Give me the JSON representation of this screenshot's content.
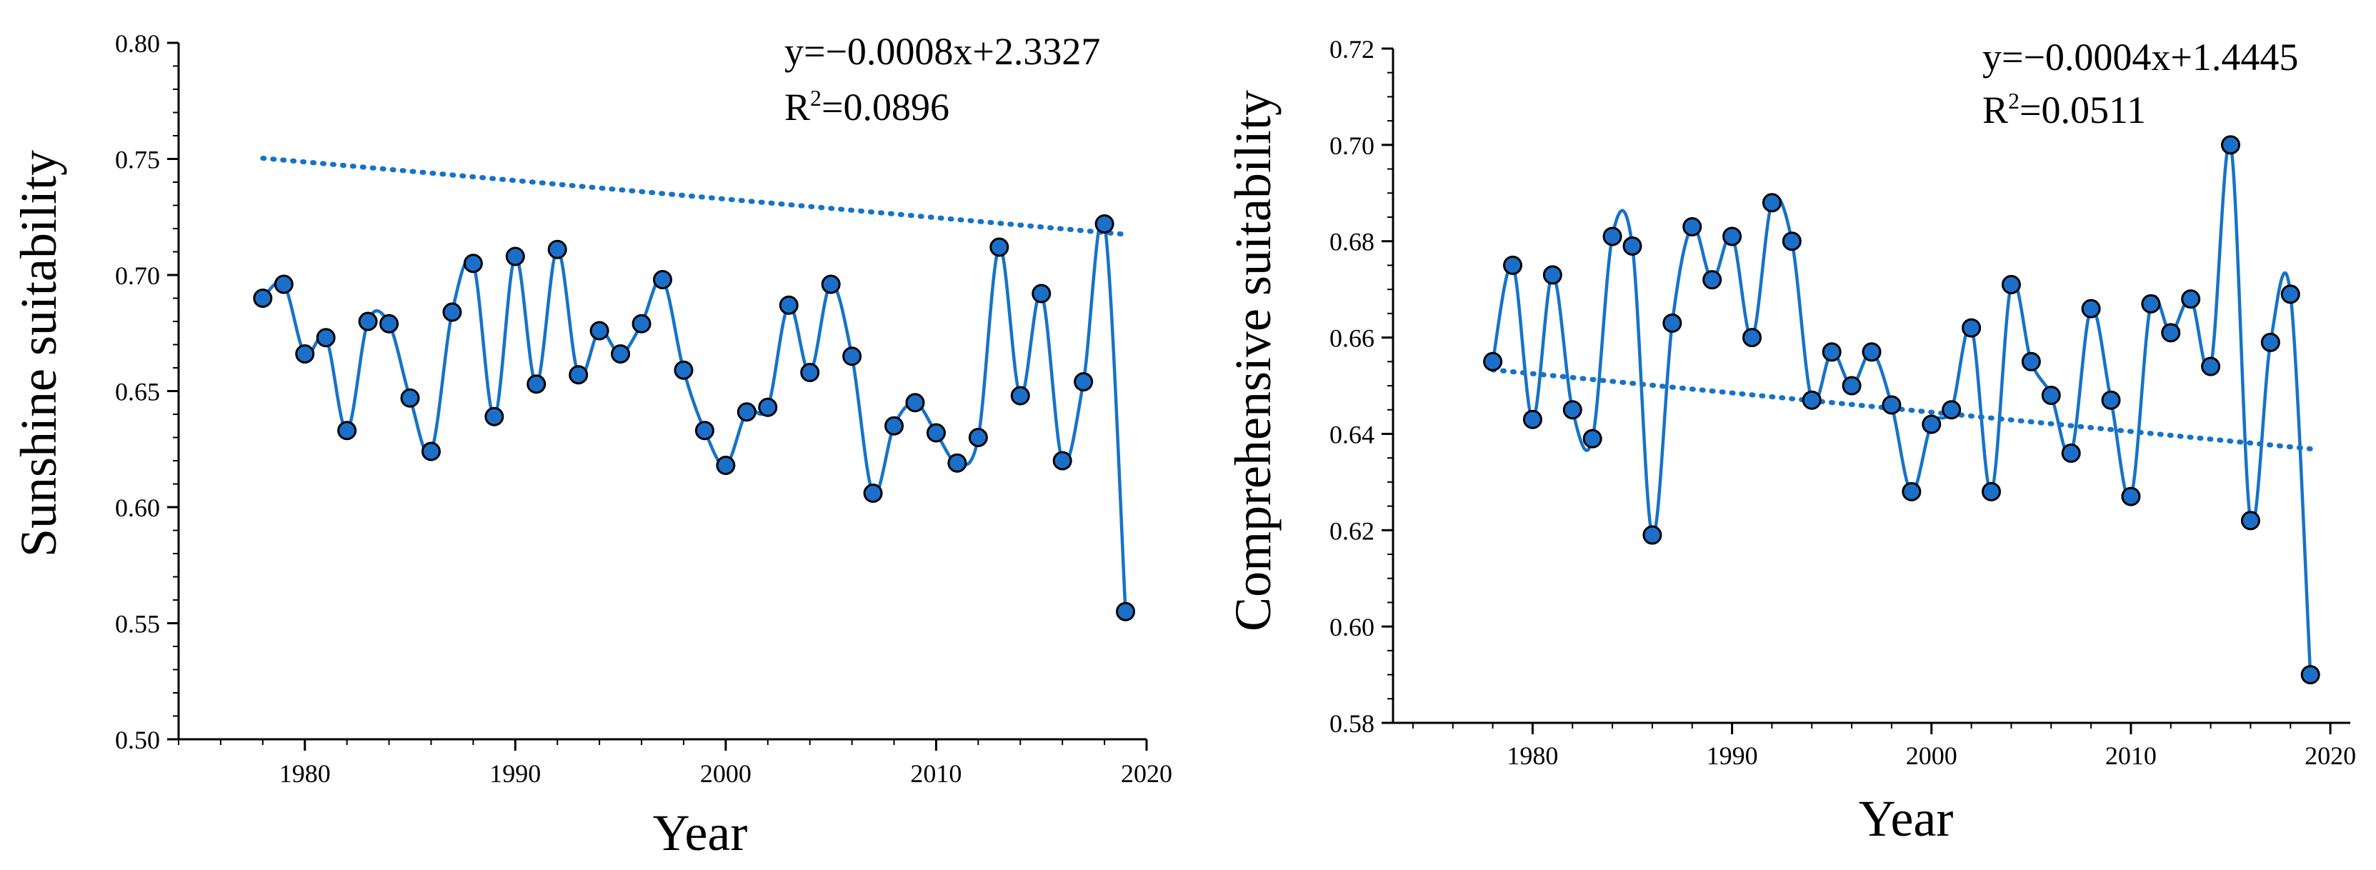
{
  "chart_data": [
    {
      "type": "line",
      "xlabel": "Year",
      "ylabel": "Sunshine suitability",
      "xlim": [
        1974,
        2020
      ],
      "ylim": [
        0.5,
        0.8
      ],
      "x_ticks": [
        1980,
        1990,
        2000,
        2010,
        2020
      ],
      "y_ticks": [
        "0.50",
        "0.55",
        "0.60",
        "0.65",
        "0.70",
        "0.75",
        "0.80"
      ],
      "y_tick_values": [
        0.5,
        0.55,
        0.6,
        0.65,
        0.7,
        0.75,
        0.8
      ],
      "y_minor_step": 0.01,
      "trend": {
        "slope": -0.0008,
        "intercept": 2.3327
      },
      "equation": "y=−0.0008x+2.3327",
      "r2_label": "R",
      "r2_sup": "2",
      "r2_value": "=0.0896",
      "x": [
        1978,
        1979,
        1980,
        1981,
        1982,
        1983,
        1984,
        1985,
        1986,
        1987,
        1988,
        1989,
        1990,
        1991,
        1992,
        1993,
        1994,
        1995,
        1996,
        1997,
        1998,
        1999,
        2000,
        2001,
        2002,
        2003,
        2004,
        2005,
        2006,
        2007,
        2008,
        2009,
        2010,
        2011,
        2012,
        2013,
        2014,
        2015,
        2016,
        2017,
        2018,
        2019
      ],
      "y": [
        0.69,
        0.696,
        0.666,
        0.673,
        0.633,
        0.68,
        0.679,
        0.647,
        0.624,
        0.684,
        0.705,
        0.639,
        0.708,
        0.653,
        0.711,
        0.657,
        0.676,
        0.666,
        0.679,
        0.698,
        0.659,
        0.633,
        0.618,
        0.641,
        0.643,
        0.687,
        0.658,
        0.696,
        0.665,
        0.606,
        0.635,
        0.645,
        0.632,
        0.619,
        0.63,
        0.712,
        0.648,
        0.692,
        0.62,
        0.654,
        0.722,
        0.555
      ]
    },
    {
      "type": "line",
      "xlabel": "Year",
      "ylabel": "Comprehensive suitability",
      "xlim": [
        1973,
        2021
      ],
      "ylim": [
        0.58,
        0.72
      ],
      "x_ticks": [
        1980,
        1990,
        2000,
        2010,
        2020
      ],
      "y_ticks": [
        "0.58",
        "0.60",
        "0.62",
        "0.64",
        "0.66",
        "0.68",
        "0.70",
        "0.72"
      ],
      "y_tick_values": [
        0.58,
        0.6,
        0.62,
        0.64,
        0.66,
        0.68,
        0.7,
        0.72
      ],
      "y_minor_step": 0.005,
      "trend": {
        "slope": -0.0004,
        "intercept": 1.4445
      },
      "equation": "y=−0.0004x+1.4445",
      "r2_label": "R",
      "r2_sup": "2",
      "r2_value": "=0.0511",
      "x": [
        1978,
        1979,
        1980,
        1981,
        1982,
        1983,
        1984,
        1985,
        1986,
        1987,
        1988,
        1989,
        1990,
        1991,
        1992,
        1993,
        1994,
        1995,
        1996,
        1997,
        1998,
        1999,
        2000,
        2001,
        2002,
        2003,
        2004,
        2005,
        2006,
        2007,
        2008,
        2009,
        2010,
        2011,
        2012,
        2013,
        2014,
        2015,
        2016,
        2017,
        2018,
        2019
      ],
      "y": [
        0.655,
        0.675,
        0.643,
        0.673,
        0.645,
        0.639,
        0.681,
        0.679,
        0.619,
        0.663,
        0.683,
        0.672,
        0.681,
        0.66,
        0.688,
        0.68,
        0.647,
        0.657,
        0.65,
        0.657,
        0.646,
        0.628,
        0.642,
        0.645,
        0.662,
        0.628,
        0.671,
        0.655,
        0.648,
        0.636,
        0.666,
        0.647,
        0.627,
        0.667,
        0.661,
        0.668,
        0.654,
        0.7,
        0.622,
        0.659,
        0.669,
        0.59
      ]
    }
  ]
}
